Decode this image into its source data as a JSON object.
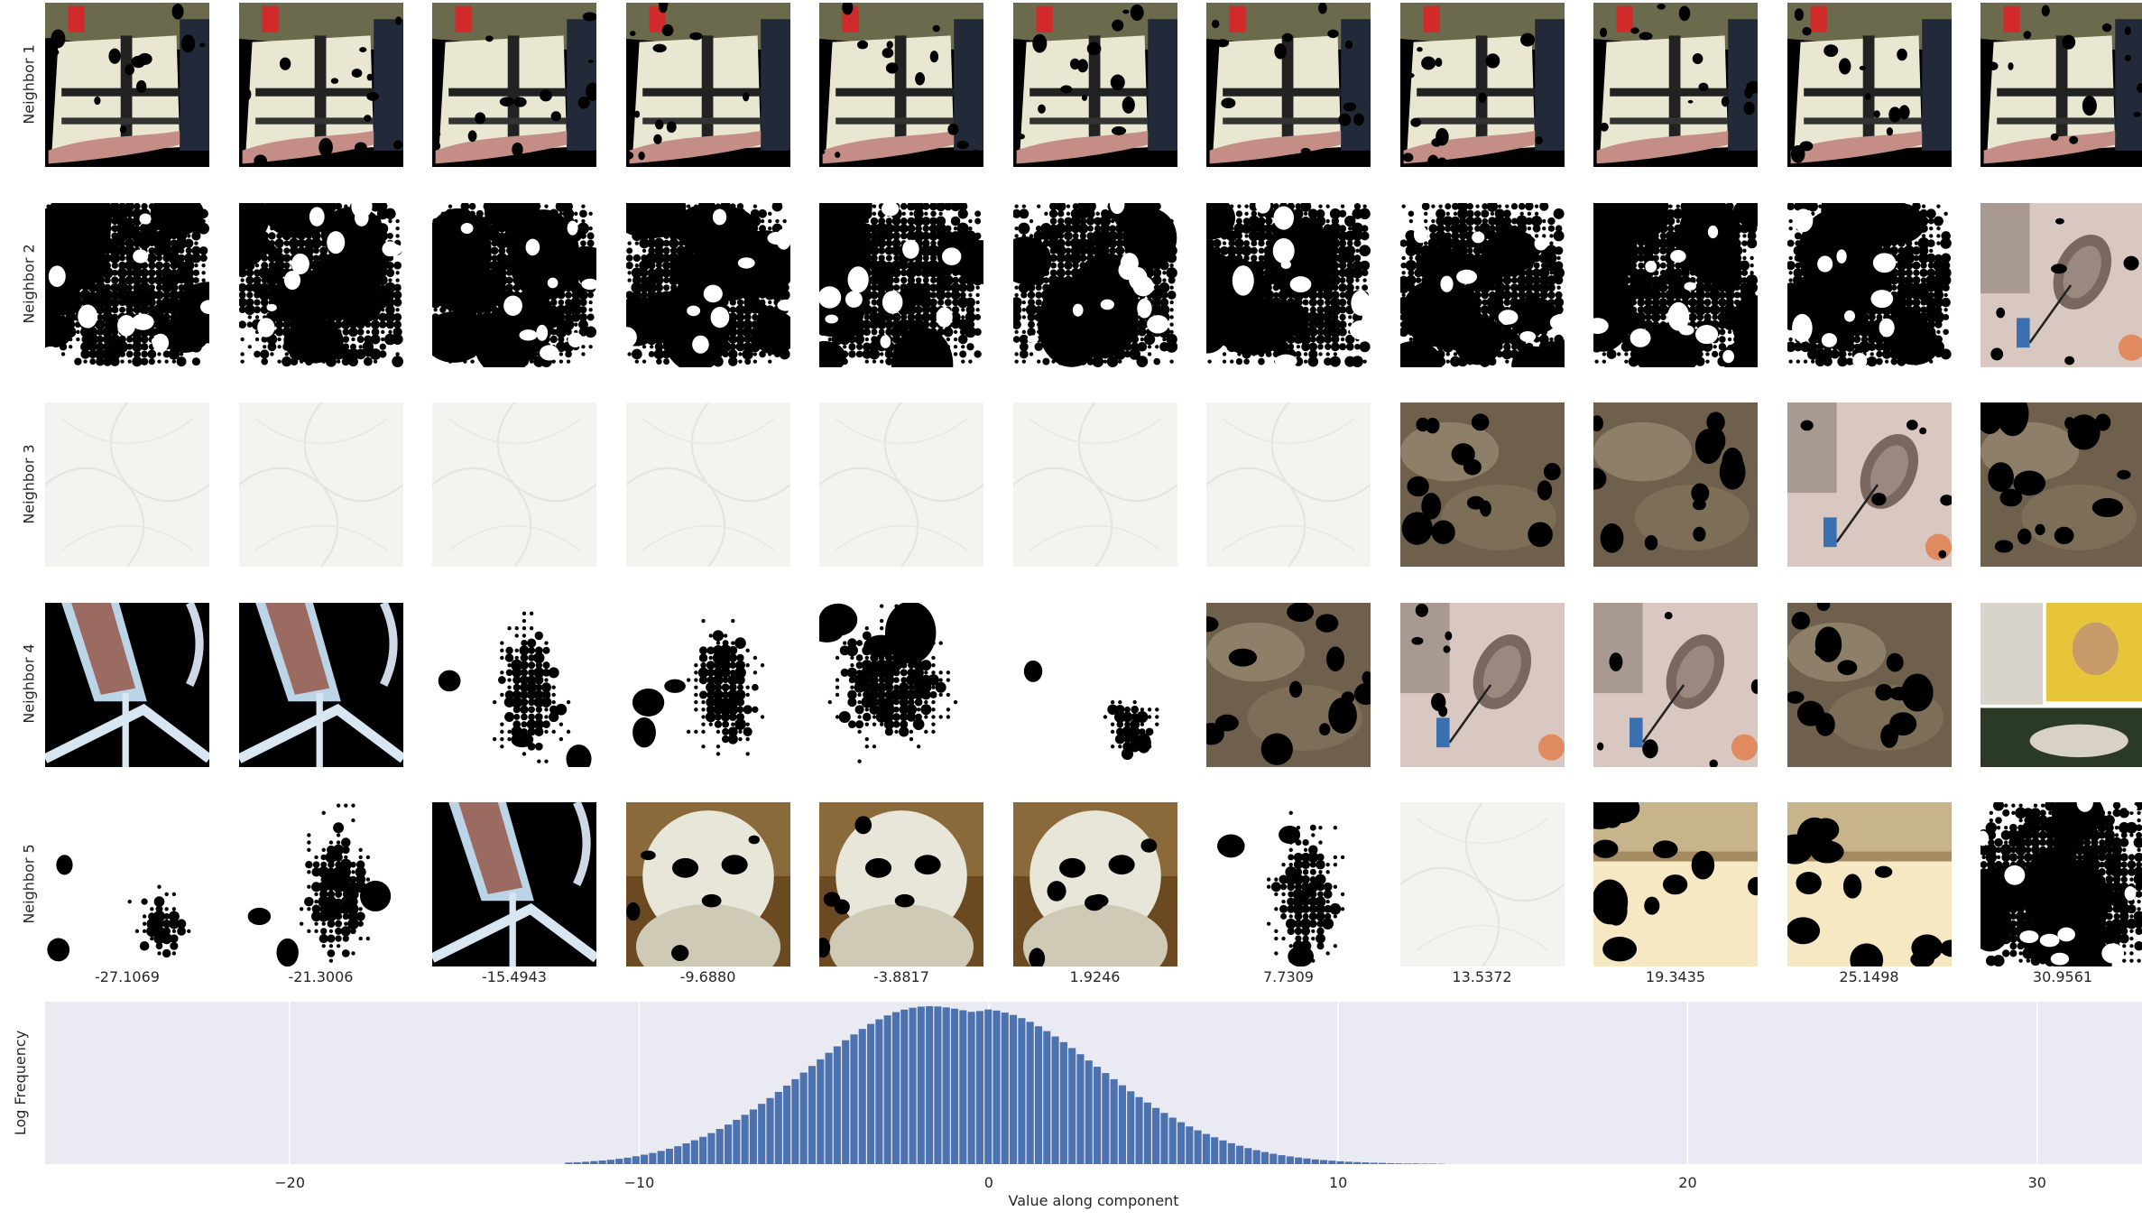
{
  "neighbors": [
    "Neighbor 1",
    "Neighbor 2",
    "Neighbor 3",
    "Neighbor 4",
    "Neighbor 5"
  ],
  "column_values": [
    "-27.1069",
    "-21.3006",
    "-15.4943",
    "-9.6880",
    "-3.8817",
    "1.9246",
    "7.7309",
    "13.5372",
    "19.3435",
    "25.1498",
    "30.9561"
  ],
  "thumbnails": [
    [
      "hands-paper-a",
      "hands-paper-a",
      "hands-paper-a",
      "hands-paper-a",
      "hands-paper-a",
      "hands-paper-a",
      "hands-paper-a",
      "hands-paper-a",
      "hands-paper-a",
      "hands-paper-a",
      "hands-paper-a"
    ],
    [
      "dots-heavy",
      "dots-heavy",
      "dots-heavy",
      "dots-heavy",
      "dots-heavy",
      "dots-heavy",
      "dots-heavy",
      "dots-heavy",
      "dots-heavy",
      "dots-heavy",
      "street-oval"
    ],
    [
      "paper-white",
      "paper-white",
      "paper-white",
      "paper-white",
      "paper-white",
      "paper-white",
      "paper-white",
      "blur-brown",
      "blur-brown",
      "street-oval",
      "blur-brown"
    ],
    [
      "pink-lines",
      "pink-lines",
      "dots-light",
      "dots-light",
      "dots-medium",
      "dots-sparse",
      "blur-brown",
      "street-oval",
      "street-oval",
      "blur-brown",
      "collage-man"
    ],
    [
      "dots-sparse",
      "dots-light",
      "pink-lines",
      "dog-white",
      "dog-white",
      "dog-white",
      "dots-light",
      "paper-white",
      "beige-wall",
      "beige-wall",
      "dots-heavy"
    ]
  ],
  "colors": {
    "bar": "#4c72b0",
    "axes_bg": "#eaeaf2",
    "grid": "#ffffff",
    "text": "#262626"
  },
  "chart_data": {
    "type": "bar",
    "title": "",
    "xlabel": "Value along component",
    "ylabel": "Log Frequency",
    "xlim": [
      -27,
      33
    ],
    "xticks": [
      -20,
      -10,
      0,
      10,
      20,
      30
    ],
    "grid": true,
    "bin_width": 0.24,
    "bins_center_x": [
      -12.0,
      -11.76,
      -11.52,
      -11.28,
      -11.04,
      -10.8,
      -10.56,
      -10.32,
      -10.08,
      -9.84,
      -9.6,
      -9.36,
      -9.12,
      -8.88,
      -8.64,
      -8.4,
      -8.16,
      -7.92,
      -7.68,
      -7.44,
      -7.2,
      -6.96,
      -6.72,
      -6.48,
      -6.24,
      -6.0,
      -5.76,
      -5.52,
      -5.28,
      -5.04,
      -4.8,
      -4.56,
      -4.32,
      -4.08,
      -3.84,
      -3.6,
      -3.36,
      -3.12,
      -2.88,
      -2.64,
      -2.4,
      -2.16,
      -1.92,
      -1.68,
      -1.44,
      -1.2,
      -0.96,
      -0.72,
      -0.48,
      -0.24,
      0.0,
      0.24,
      0.48,
      0.72,
      0.96,
      1.2,
      1.44,
      1.68,
      1.92,
      2.16,
      2.4,
      2.64,
      2.88,
      3.12,
      3.36,
      3.6,
      3.84,
      4.08,
      4.32,
      4.56,
      4.8,
      5.04,
      5.28,
      5.52,
      5.76,
      6.0,
      6.24,
      6.48,
      6.72,
      6.96,
      7.2,
      7.44,
      7.68,
      7.92,
      8.16,
      8.4,
      8.64,
      8.88,
      9.12,
      9.36,
      9.6,
      9.84,
      10.08,
      10.32,
      10.56,
      10.8,
      11.04,
      11.28,
      11.52,
      11.76,
      12.0,
      12.24,
      12.48,
      12.72,
      12.96
    ],
    "log_frequency_normalized": [
      0.01,
      0.012,
      0.015,
      0.019,
      0.023,
      0.028,
      0.034,
      0.041,
      0.05,
      0.06,
      0.071,
      0.084,
      0.098,
      0.114,
      0.132,
      0.152,
      0.174,
      0.198,
      0.224,
      0.252,
      0.282,
      0.314,
      0.348,
      0.384,
      0.421,
      0.46,
      0.5,
      0.541,
      0.583,
      0.625,
      0.667,
      0.709,
      0.75,
      0.789,
      0.826,
      0.861,
      0.893,
      0.922,
      0.947,
      0.968,
      0.984,
      0.996,
      1.003,
      1.006,
      1.004,
      0.998,
      0.99,
      0.98,
      0.97,
      0.975,
      0.985,
      0.978,
      0.965,
      0.95,
      0.93,
      0.906,
      0.878,
      0.847,
      0.813,
      0.777,
      0.739,
      0.7,
      0.66,
      0.62,
      0.58,
      0.541,
      0.502,
      0.464,
      0.427,
      0.392,
      0.358,
      0.326,
      0.296,
      0.267,
      0.24,
      0.215,
      0.192,
      0.171,
      0.151,
      0.133,
      0.117,
      0.102,
      0.089,
      0.077,
      0.066,
      0.057,
      0.049,
      0.042,
      0.036,
      0.03,
      0.026,
      0.022,
      0.018,
      0.015,
      0.013,
      0.011,
      0.009,
      0.008,
      0.006,
      0.005,
      0.004,
      0.004,
      0.003,
      0.003,
      0.002
    ]
  }
}
